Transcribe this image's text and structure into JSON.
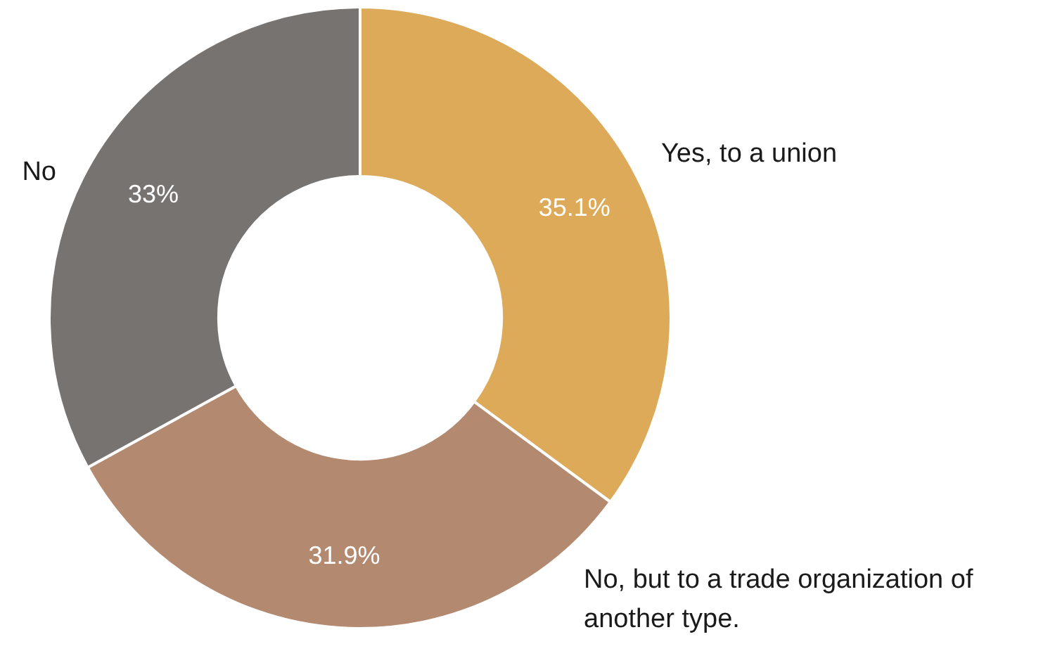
{
  "chart_data": {
    "type": "donut",
    "categories": [
      "Yes, to a union",
      "No, but to a trade organization of another type.",
      "No"
    ],
    "values": [
      35.1,
      31.9,
      33
    ],
    "colors": [
      "#dcaa58",
      "#b38970",
      "#767371"
    ],
    "value_labels": [
      "35.1%",
      "31.9%",
      "33%"
    ]
  }
}
